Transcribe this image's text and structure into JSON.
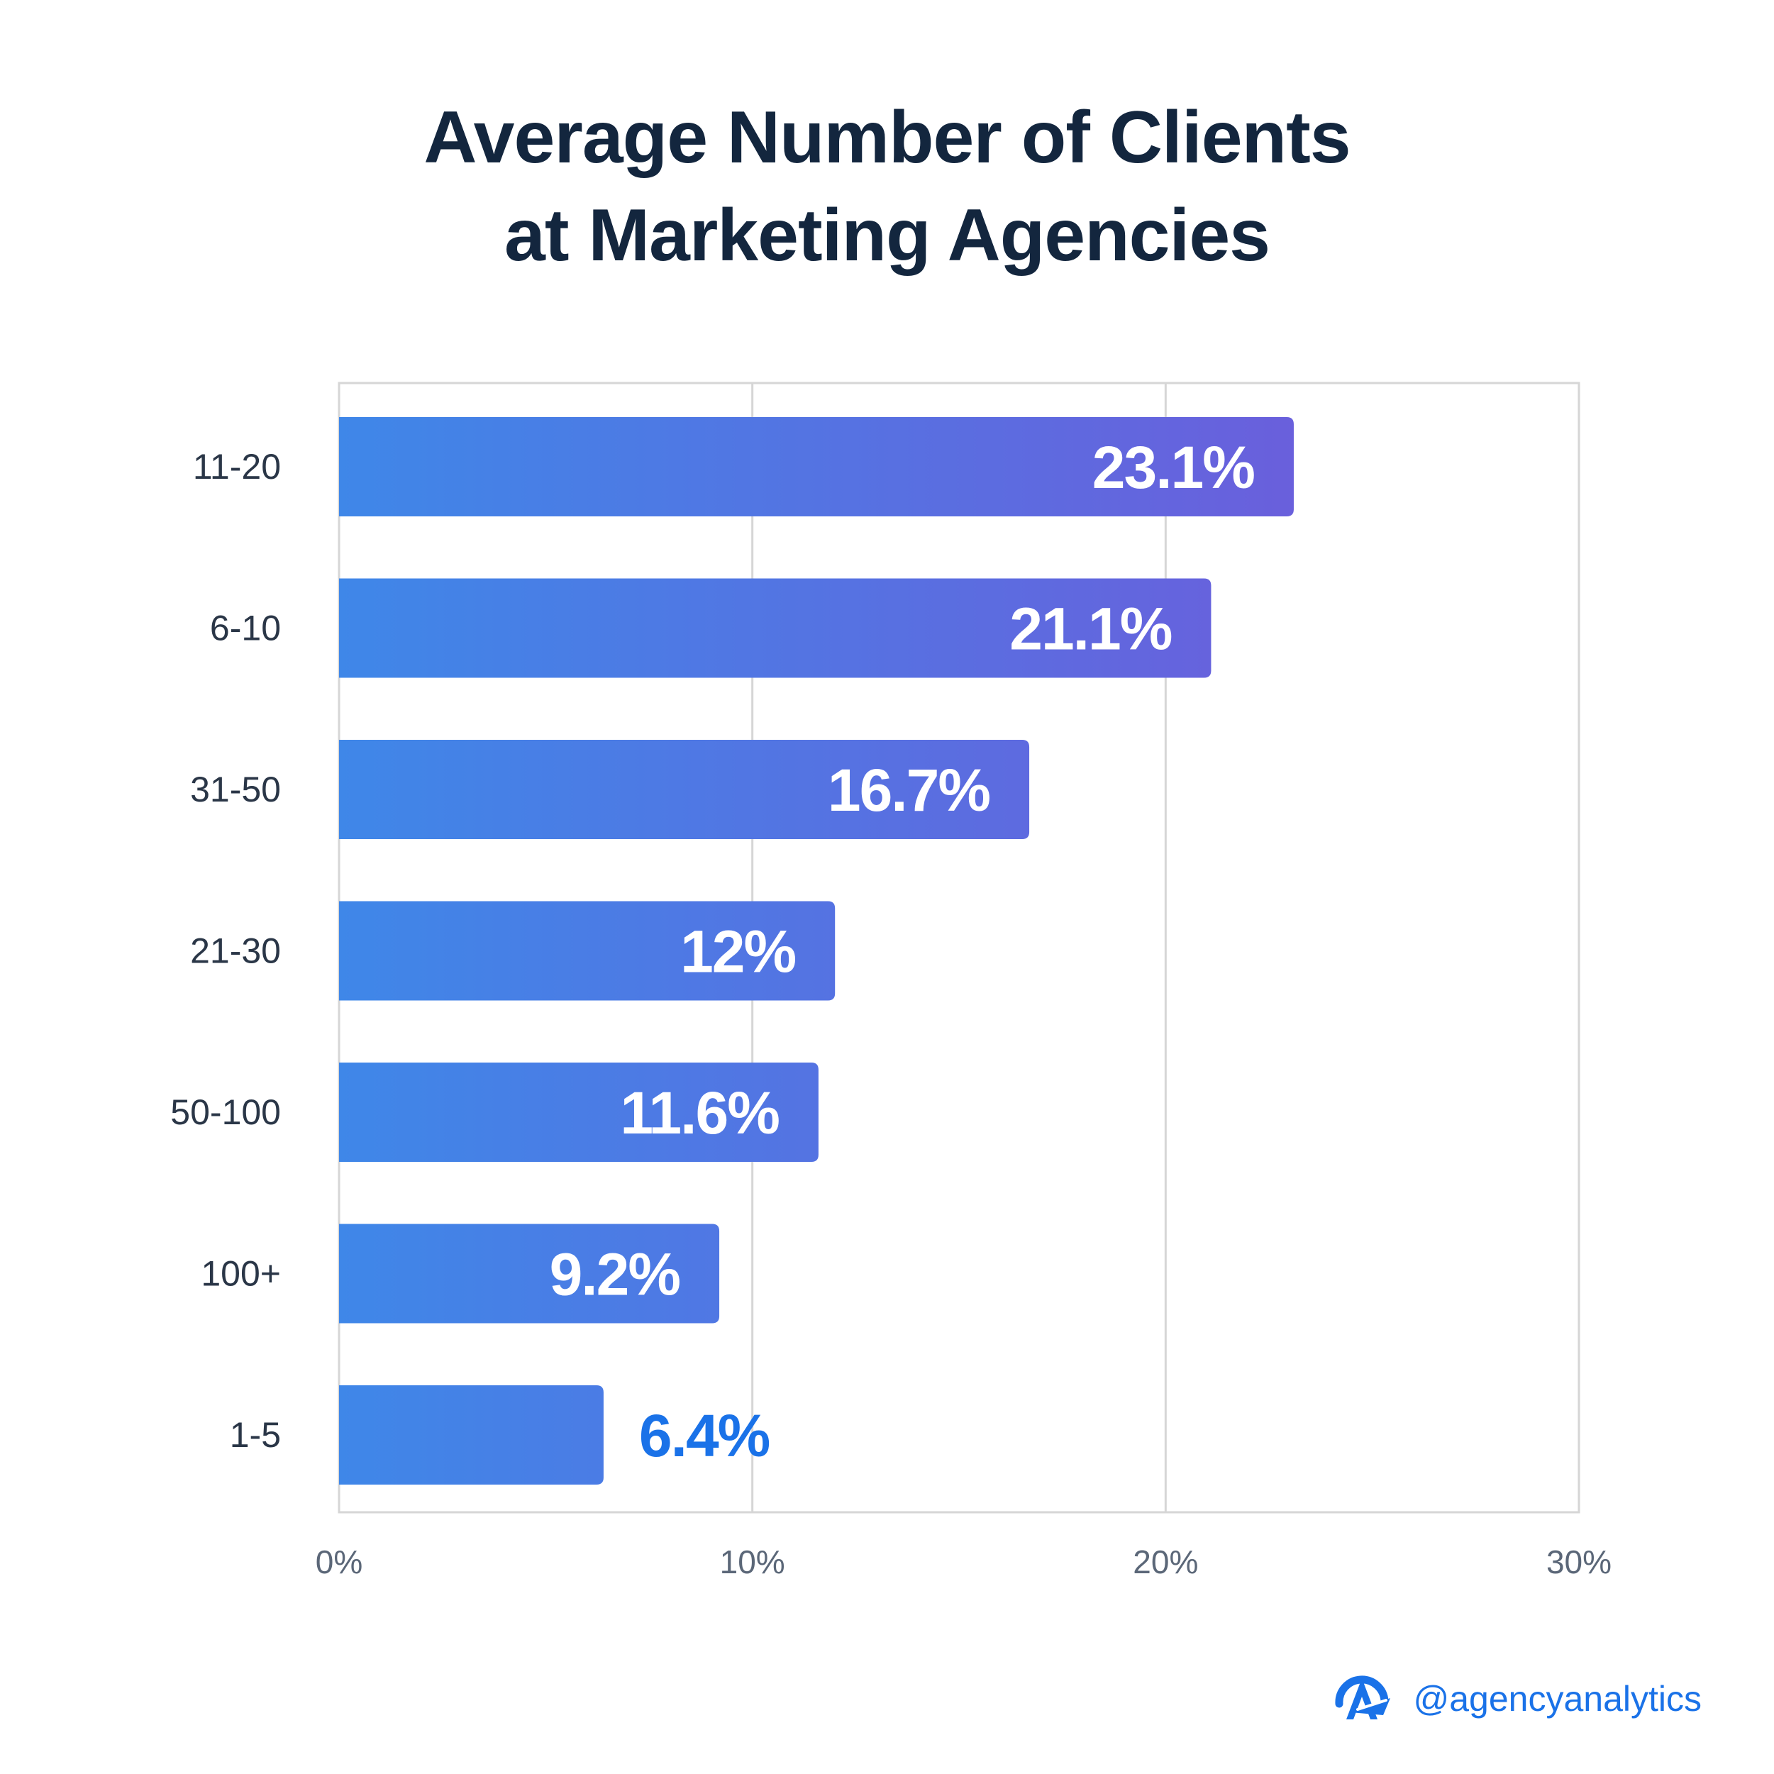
{
  "chart_data": {
    "type": "bar",
    "orientation": "horizontal",
    "title_lines": [
      "Average Number of Clients",
      "at Marketing Agencies"
    ],
    "categories": [
      "11-20",
      "6-10",
      "31-50",
      "21-30",
      "50-100",
      "100+",
      "1-5"
    ],
    "values": [
      23.1,
      21.1,
      16.7,
      12,
      11.6,
      9.2,
      6.4
    ],
    "value_labels": [
      "23.1%",
      "21.1%",
      "16.7%",
      "12%",
      "11.6%",
      "9.2%",
      "6.4%"
    ],
    "xlim": [
      0,
      30
    ],
    "x_ticks": [
      0,
      10,
      20,
      30
    ],
    "x_tick_labels": [
      "0%",
      "10%",
      "20%",
      "30%"
    ],
    "xlabel": "",
    "ylabel": "",
    "grid": true,
    "legend": "none"
  },
  "colors": {
    "title": "#13263e",
    "bar_gradient_start": "#3f87e8",
    "bar_gradient_end": "#6a5fdc",
    "value_label_inside": "#ffffff",
    "value_label_outside": "#1a72e8",
    "grid": "#d6d6d6",
    "category_label": "#2a3647",
    "tick_label": "#5b6778",
    "brand": "#1a72e8"
  },
  "brand": {
    "icon": "agencyanalytics-logo-icon",
    "handle": "@agencyanalytics"
  }
}
